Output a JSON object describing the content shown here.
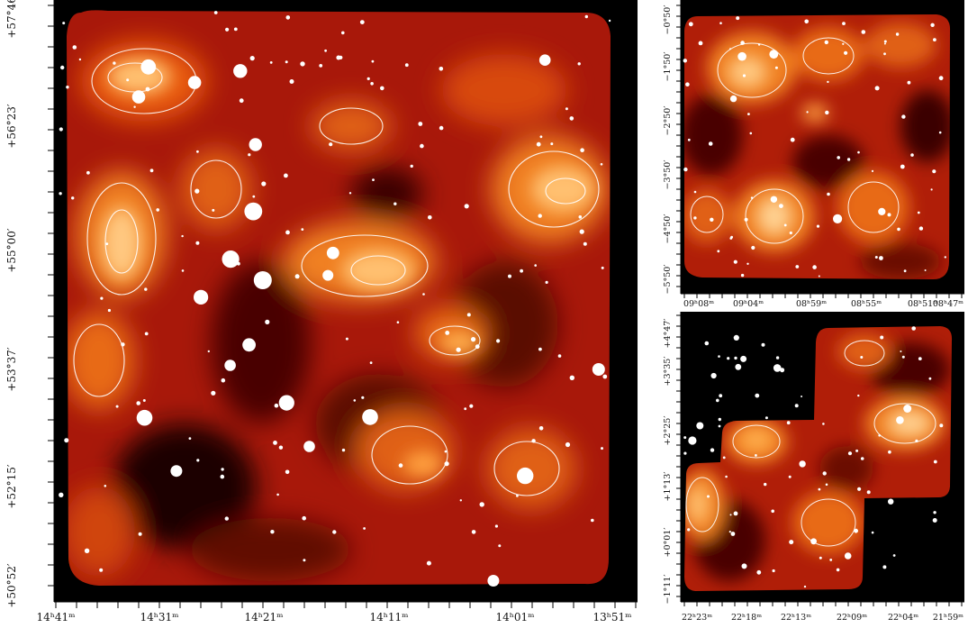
{
  "panels": [
    {
      "id": "large",
      "ra_ticks": [
        "14ʰ41ᵐ",
        "14ʰ31ᵐ",
        "14ʰ21ᵐ",
        "14ʰ11ᵐ",
        "14ʰ01ᵐ",
        "13ʰ51ᵐ"
      ],
      "dec_ticks": [
        "+57°46′",
        "+56°23′",
        "+55°00′",
        "+53°37′",
        "+52°15′",
        "+50°52′"
      ]
    },
    {
      "id": "top-right",
      "ra_ticks": [
        "09ʰ08ᵐ",
        "09ʰ04ᵐ",
        "08ʰ59ᵐ",
        "08ʰ55ᵐ",
        "08ʰ51ᵐ",
        "08ʰ47ᵐ"
      ],
      "dec_ticks": [
        "−0°50′",
        "−1°50′",
        "−2°50′",
        "−3°50′",
        "−4°50′",
        "−5°50′"
      ]
    },
    {
      "id": "bottom-right",
      "ra_ticks": [
        "22ʰ23ᵐ",
        "22ʰ18ᵐ",
        "22ʰ13ᵐ",
        "22ʰ09ᵐ",
        "22ʰ04ᵐ",
        "21ʰ59ᵐ"
      ],
      "dec_ticks": [
        "+4°47′",
        "+3°35′",
        "+2°25′",
        "+1°13′",
        "+0°01′",
        "−1°11′"
      ]
    }
  ],
  "colors": {
    "background_sky": "#000000",
    "map_dark": "#1a0000",
    "map_mid": "#b01a05",
    "map_orange": "#f07010",
    "map_bright": "#ffe0b0",
    "contour": "#ffffff"
  }
}
